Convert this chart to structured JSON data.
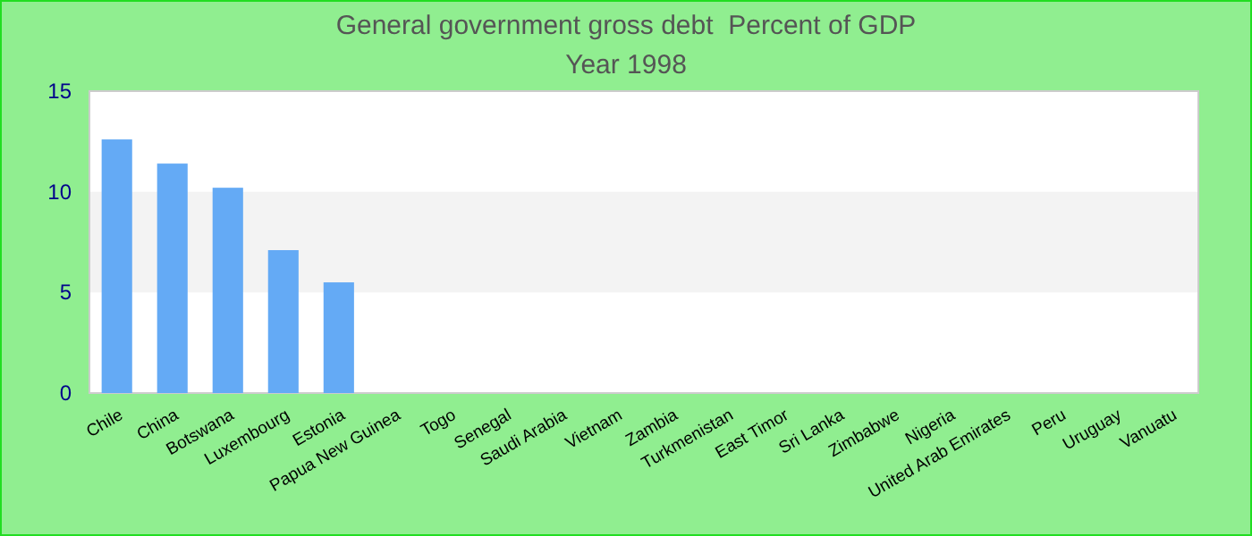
{
  "chart_data": {
    "type": "bar",
    "title": "General government gross debt  Percent of GDP",
    "subtitle": "Year 1998",
    "categories": [
      "Chile",
      "China",
      "Botswana",
      "Luxembourg",
      "Estonia",
      "Papua New Guinea",
      "Togo",
      "Senegal",
      "Saudi Arabia",
      "Vietnam",
      "Zambia",
      "Turkmenistan",
      "East Timor",
      "Sri Lanka",
      "Zimbabwe",
      "Nigeria",
      "United Arab Emirates",
      "Peru",
      "Uruguay",
      "Vanuatu"
    ],
    "values": [
      12.6,
      11.4,
      10.2,
      7.1,
      5.5,
      null,
      null,
      null,
      null,
      null,
      null,
      null,
      null,
      null,
      null,
      null,
      null,
      null,
      null,
      null
    ],
    "color": "#64aaf5",
    "ylim": [
      0,
      15
    ],
    "yticks": [
      0,
      5,
      10,
      15
    ],
    "bands": [
      {
        "axis": "y",
        "from": 5,
        "to": 10,
        "color": "#f3f3f3"
      }
    ]
  }
}
